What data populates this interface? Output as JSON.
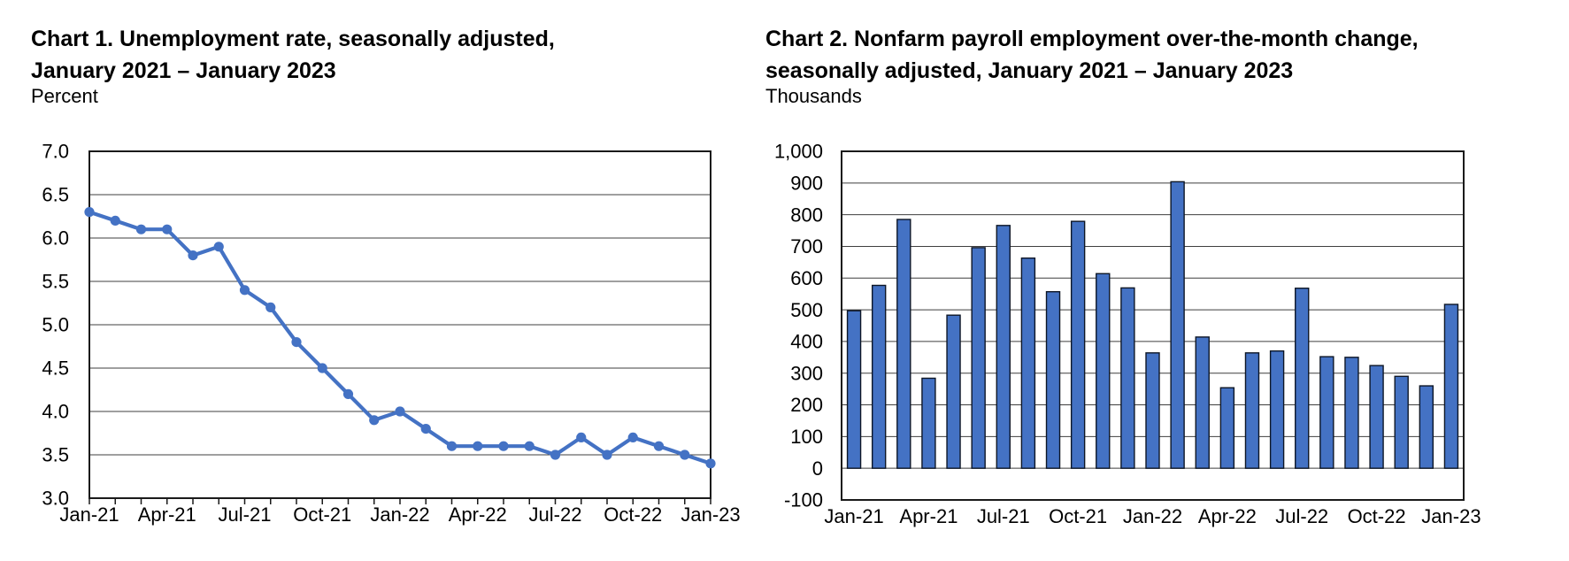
{
  "page": {
    "background": "#ffffff"
  },
  "chart_data": [
    {
      "id": "chart1",
      "type": "line",
      "title_lines": [
        "Chart 1. Unemployment rate, seasonally adjusted,",
        "January 2021 – January 2023"
      ],
      "ylabel": "Percent",
      "categories": [
        "Jan-21",
        "Feb-21",
        "Mar-21",
        "Apr-21",
        "May-21",
        "Jun-21",
        "Jul-21",
        "Aug-21",
        "Sep-21",
        "Oct-21",
        "Nov-21",
        "Dec-21",
        "Jan-22",
        "Feb-22",
        "Mar-22",
        "Apr-22",
        "May-22",
        "Jun-22",
        "Jul-22",
        "Aug-22",
        "Sep-22",
        "Oct-22",
        "Nov-22",
        "Dec-22",
        "Jan-23"
      ],
      "values": [
        6.3,
        6.2,
        6.1,
        6.1,
        5.8,
        5.9,
        5.4,
        5.2,
        4.8,
        4.5,
        4.2,
        3.9,
        4.0,
        3.8,
        3.6,
        3.6,
        3.6,
        3.6,
        3.5,
        3.7,
        3.5,
        3.7,
        3.6,
        3.5,
        3.4
      ],
      "ylim": [
        3.0,
        7.0
      ],
      "ytick_step": 0.5,
      "ytick_labels": [
        "7.0",
        "6.5",
        "6.0",
        "5.5",
        "5.0",
        "4.5",
        "4.0",
        "3.5",
        "3.0"
      ],
      "xtick_labels": [
        "Jan-21",
        "Apr-21",
        "Jul-21",
        "Oct-21",
        "Jan-22",
        "Apr-22",
        "Jul-22",
        "Oct-22",
        "Jan-23"
      ],
      "xtick_every": 3,
      "grid": "horizontal",
      "legend": "none",
      "line_color": "#4472C4",
      "marker": "circle"
    },
    {
      "id": "chart2",
      "type": "bar",
      "title_lines": [
        "Chart 2. Nonfarm payroll employment over-the-month change,",
        "seasonally adjusted, January 2021 – January 2023"
      ],
      "ylabel": "Thousands",
      "categories": [
        "Jan-21",
        "Feb-21",
        "Mar-21",
        "Apr-21",
        "May-21",
        "Jun-21",
        "Jul-21",
        "Aug-21",
        "Sep-21",
        "Oct-21",
        "Nov-21",
        "Dec-21",
        "Jan-22",
        "Feb-22",
        "Mar-22",
        "Apr-22",
        "May-22",
        "Jun-22",
        "Jul-22",
        "Aug-22",
        "Sep-22",
        "Oct-22",
        "Nov-22",
        "Dec-22",
        "Jan-23"
      ],
      "values": [
        497,
        577,
        785,
        284,
        483,
        696,
        766,
        663,
        557,
        779,
        614,
        569,
        364,
        904,
        414,
        254,
        364,
        370,
        568,
        352,
        350,
        324,
        290,
        260,
        517
      ],
      "ylim": [
        -100,
        1000
      ],
      "ytick_step": 100,
      "ytick_labels": [
        "1,000",
        "900",
        "800",
        "700",
        "600",
        "500",
        "400",
        "300",
        "200",
        "100",
        "0",
        "-100"
      ],
      "xtick_labels": [
        "Jan-21",
        "Apr-21",
        "Jul-21",
        "Oct-21",
        "Jan-22",
        "Apr-22",
        "Jul-22",
        "Oct-22",
        "Jan-23"
      ],
      "xtick_every": 3,
      "grid": "horizontal",
      "legend": "none",
      "bar_color": "#4472C4",
      "bar_border_color": "#0d1626"
    }
  ]
}
